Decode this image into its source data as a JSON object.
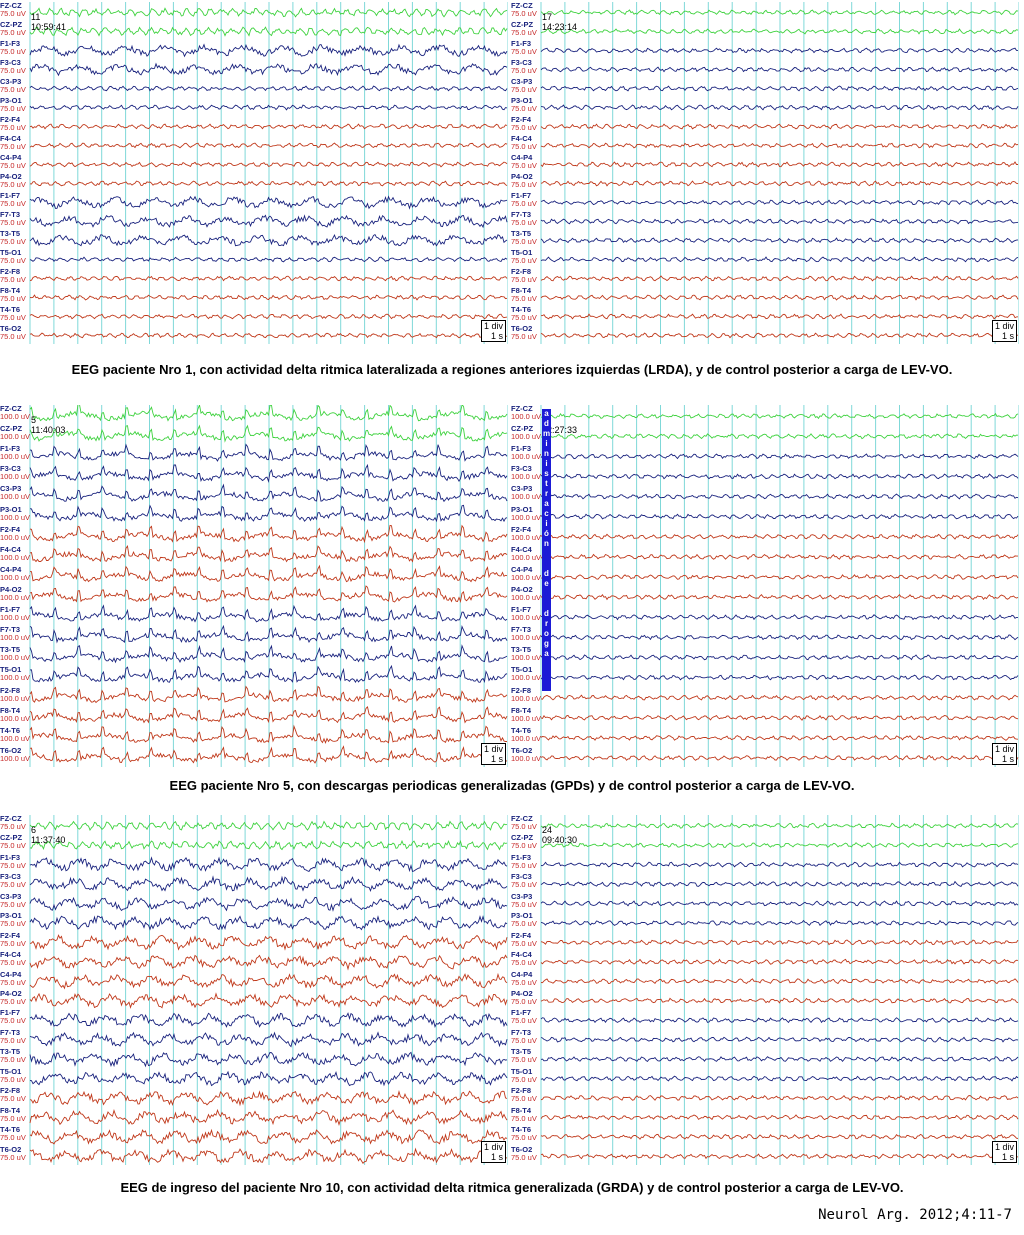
{
  "figure": {
    "rows": [
      {
        "caption": "EEG paciente Nro 1, con actividad delta  ritmica lateralizada a regiones anteriores izquierdas (LRDA), y de control posterior a carga de LEV-VO.",
        "panels": [
          {
            "page": "11",
            "time": "10:59:41",
            "amplitude": "75.0 uV",
            "scale_div": "1 div",
            "scale_time": "1 s",
            "pattern": "lrda"
          },
          {
            "page": "17",
            "time": "14:23:14",
            "amplitude": "75.0 uV",
            "scale_div": "1 div",
            "scale_time": "1 s",
            "pattern": "control"
          }
        ]
      },
      {
        "caption": "EEG paciente Nro 5, con descargas periodicas generalizadas (GPDs) y de control posterior a carga de LEV-VO.",
        "panels": [
          {
            "page": "5",
            "time": "11:40:03",
            "amplitude": "100.0 uV",
            "scale_div": "1 div",
            "scale_time": "1 s",
            "pattern": "gpd"
          },
          {
            "page": "",
            "time": "12:27:33",
            "amplitude": "100.0 uV",
            "scale_div": "1 div",
            "scale_time": "1 s",
            "pattern": "control",
            "marker": "administración de droga"
          }
        ]
      },
      {
        "caption": "EEG de ingreso del paciente Nro 10, con actividad delta ritmica generalizada (GRDA) y de control posterior a carga de LEV-VO.",
        "panels": [
          {
            "page": "6",
            "time": "11:37:40",
            "amplitude": "75.0 uV",
            "scale_div": "1 div",
            "scale_time": "1 s",
            "pattern": "grda"
          },
          {
            "page": "24",
            "time": "09:40:30",
            "amplitude": "75.0 uV",
            "scale_div": "1 div",
            "scale_time": "1 s",
            "pattern": "control"
          }
        ]
      }
    ],
    "channels": [
      "FZ-CZ",
      "CZ-PZ",
      "F1-F3",
      "F3-C3",
      "C3-P3",
      "P3-O1",
      "F2-F4",
      "F4-C4",
      "C4-P4",
      "P4-O2",
      "F1-F7",
      "F7-T3",
      "T3-T5",
      "T5-O1",
      "F2-F8",
      "F8-T4",
      "T4-T6",
      "T6-O2"
    ],
    "colors": {
      "midline": "#3fd23f",
      "left": "#1a237e",
      "right": "#c0391b",
      "grid": "#7fd8d8",
      "marker": "#1b1bd6"
    },
    "citation": "Neurol Arg. 2012;4:11-7"
  }
}
